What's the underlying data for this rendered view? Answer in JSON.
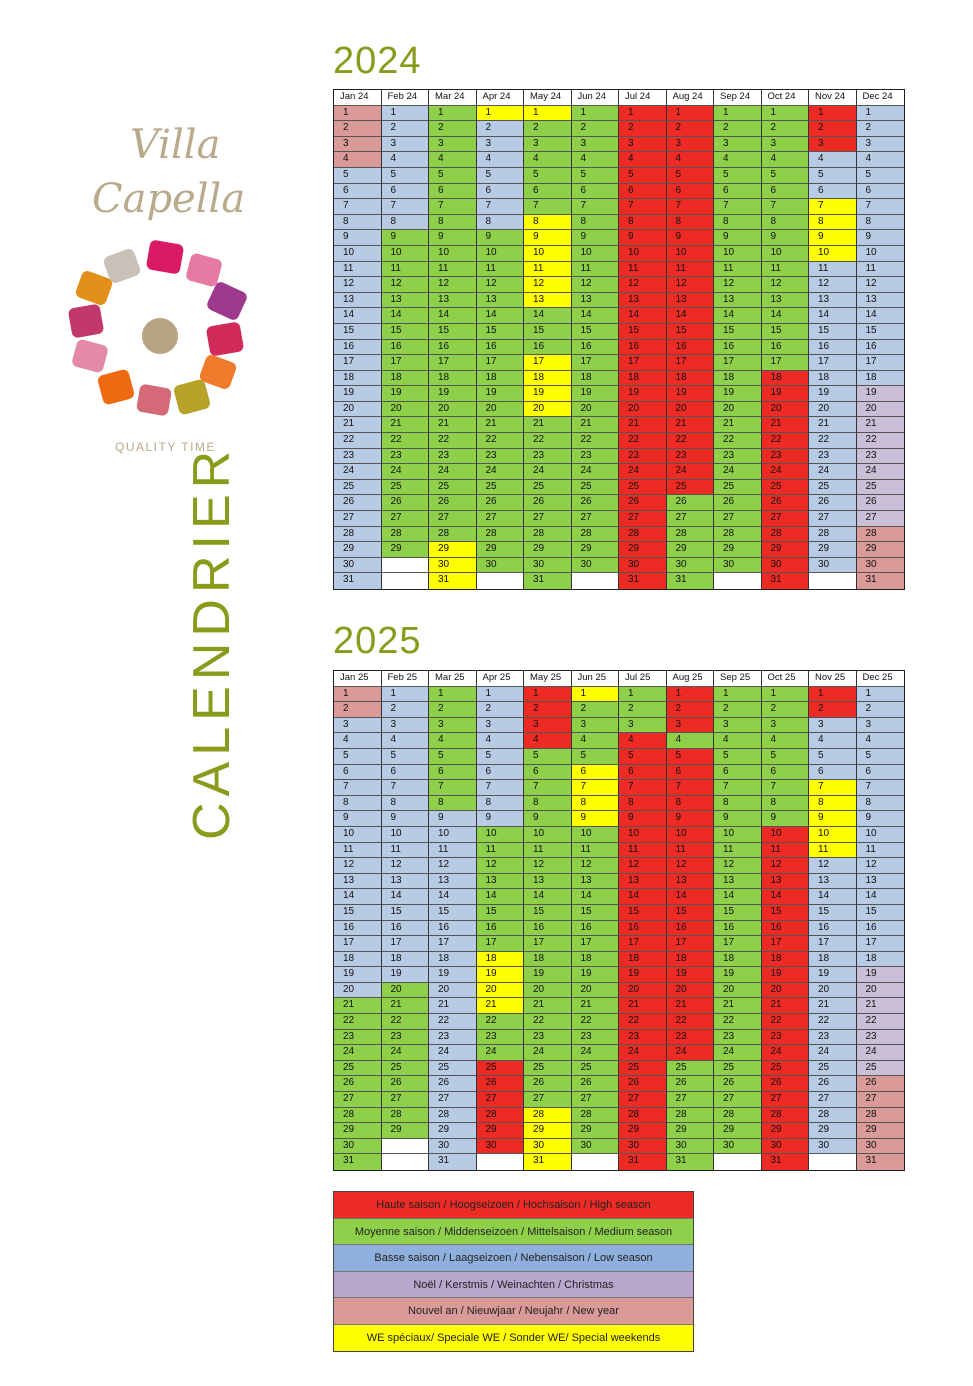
{
  "logo": {
    "line1": "Villa",
    "line2": "Capella",
    "tagline": "QUALITY TIME"
  },
  "vertical_title": "CALENDRIER",
  "colors": {
    "high": "#ee2a24",
    "medium": "#8ed04a",
    "low": "#b7cbe4",
    "christmas": "#cbbfd8",
    "new_year": "#d99a98",
    "special": "#ffff00",
    "empty": "#ffffff"
  },
  "legend": [
    {
      "label": "Haute saison / Hoogseizoen / Hochsaison / High season",
      "color": "#ee2a24"
    },
    {
      "label": "Moyenne saison / Middenseizoen /  Mittelsaison / Medium season",
      "color": "#8ed04a"
    },
    {
      "label": "Basse saison / Laagseizoen / Nebensaison / Low season",
      "color": "#8fb0dc"
    },
    {
      "label": "Noël / Kerstmis / Weinachten / Christmas",
      "color": "#b8a6cc"
    },
    {
      "label": "Nouvel an / Nieuwjaar / Neujahr / New year",
      "color": "#d99a98"
    },
    {
      "label": "WE spéciaux/ Speciale WE / Sonder WE/ Special weekends",
      "color": "#ffff00"
    }
  ],
  "calendars": [
    {
      "year": "2024",
      "months": [
        "Jan 24",
        "Feb 24",
        "Mar 24",
        "Apr 24",
        "May 24",
        "Jun 24",
        "Jul 24",
        "Aug 24",
        "Sep 24",
        "Oct 24",
        "Nov 24",
        "Dec 24"
      ],
      "codes": [
        "NNNNLLLLLLLLLLLLLLLLLLLLLLLLLLL",
        "LLLLLLLLMMMMMMMMMMMMMMMMMMMMM",
        "MMMMMMMMMMMMMMMMMMMMMMMMMMMMWWW",
        "WLLLLLLLMMMMMMMMMMMMMMMMMMMMMM",
        "WMMMMMMWWWWWWMMMWWWWMMMMMMMMMMM",
        "MMMMMMMMMMMMMMMMMMMMMMMMMMMMMM",
        "HHHHHHHHHHHHHHHHHHHHHHHHHHHHHHH",
        "HHHHHHHHHHHHHHHHHHHHHHHHHMMMMMM",
        "MMMMMMMMMMMMMMMMMMMMMMMMMMMMMM",
        "MMMMMMMMMMMMMMMMMHHHHHHHHHHHHHH",
        "HHHLLLWWWWLLLLLLLLLLLLLLLLLLLL",
        "LLLLLLLLLLLLLLLLLLXXXXXXXXXNNNN"
      ]
    },
    {
      "year": "2025",
      "months": [
        "Jan 25",
        "Feb 25",
        "Mar 25",
        "Apr 25",
        "May 25",
        "Jun 25",
        "Jul 25",
        "Aug 25",
        "Sep 25",
        "Oct 25",
        "Nov 25",
        "Dec 25"
      ],
      "codes": [
        "NNLLLLLLLLLLLLLLLLLLMMMMMMMMMMM",
        "LLLLLLLLLLLLLLLLLLLMMMMMMMMMM",
        "MMMMMMMMLLLLLLLLLLLLLLLLLLLLLLL",
        "LLLLLLLLLMMMMMMMMWWWWMMMHHHHHH",
        "HHHHMMMMMMMMMMMMMMMMMMMMMMMWWWW",
        "WMMMMWWWWMMMMMMMMMMMMMMMMMMMMM",
        "MMMHHHHHHHHHHHHHHHHHHHHHHHHHHHH",
        "HHHMHHHHHHHHHHHHHHHHHHHHMMMMMMM",
        "MMMMMMMMMMMMMMMMMMMMMMMMMMMMMM",
        "MMMMMMMMMHHHHHHHHHHHHHHHHHHHHHH",
        "HHLLLLWWWWWLLLLLLLLLLLLLLLLLLL",
        "LLLLLLLLLLLLLLLLLLXXXXXXXNNNNNN"
      ]
    }
  ]
}
